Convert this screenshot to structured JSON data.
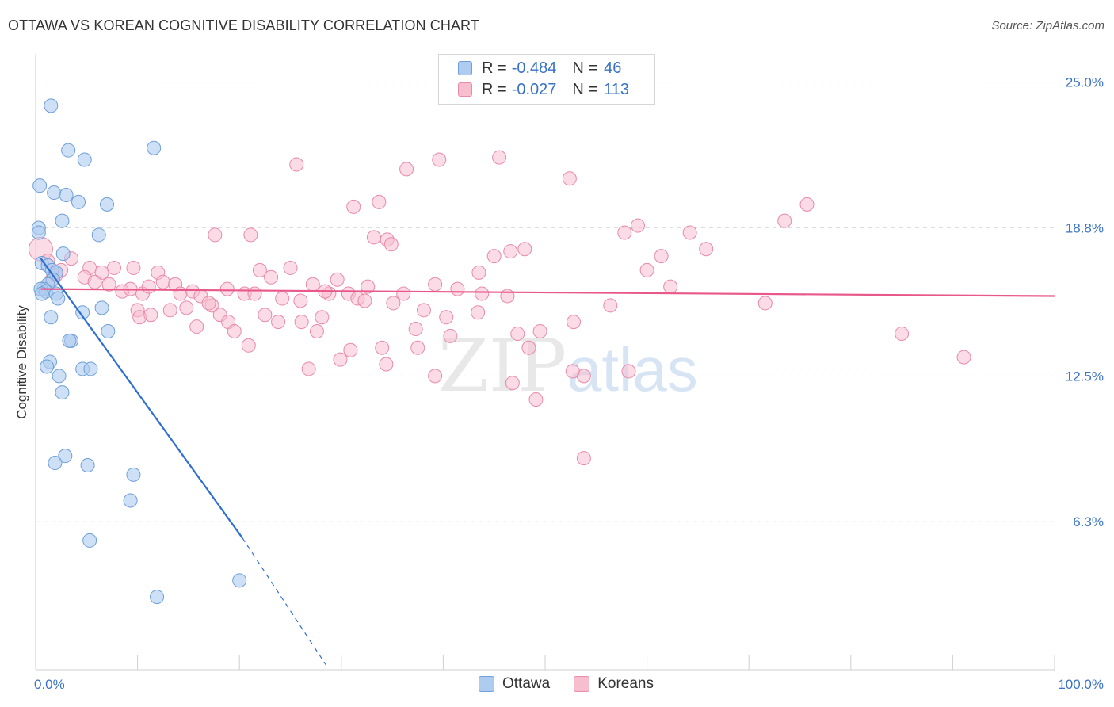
{
  "header": {
    "title": "OTTAWA VS KOREAN COGNITIVE DISABILITY CORRELATION CHART",
    "source": "Source: ZipAtlas.com"
  },
  "watermark": {
    "part1": "ZIP",
    "part2": "atlas"
  },
  "legend": {
    "rows": [
      {
        "r_label": "R =",
        "r_value": "-0.484",
        "n_label": "N =",
        "n_value": "46"
      },
      {
        "r_label": "R =",
        "r_value": "-0.027",
        "n_label": "N =",
        "n_value": "113"
      }
    ]
  },
  "bottom_legend": {
    "series1": "Ottawa",
    "series2": "Koreans"
  },
  "colors": {
    "ottawa_fill": "#aeccf0",
    "ottawa_stroke": "#6e9fd8",
    "ottawa_line": "#2f6fcf",
    "koreans_fill": "#f7bed0",
    "koreans_stroke": "#e88aa8",
    "koreans_line": "#e8588a",
    "axis_label": "#3a73c4",
    "grid": "#dddddd"
  },
  "chart_data": {
    "type": "scatter",
    "title": "OTTAWA VS KOREAN COGNITIVE DISABILITY CORRELATION CHART",
    "xlabel": "",
    "ylabel": "Cognitive Disability",
    "xlim": [
      0,
      100
    ],
    "ylim": [
      0,
      25.9
    ],
    "x_tick_labels": [
      "0.0%",
      "100.0%"
    ],
    "y_ticks": [
      6.3,
      12.5,
      18.8,
      25.0
    ],
    "y_tick_labels": [
      "6.3%",
      "12.5%",
      "18.8%",
      "25.0%"
    ],
    "grid": true,
    "legend_position": "top-center",
    "series": [
      {
        "name": "Ottawa",
        "r": -0.484,
        "n": 46,
        "trend": {
          "x": [
            0.5,
            20.3
          ],
          "y": [
            17.5,
            5.6
          ]
        },
        "trend_extension": {
          "x": [
            20.3,
            28.5
          ],
          "y": [
            5.6,
            0.2
          ]
        },
        "points": [
          [
            1.5,
            24.0
          ],
          [
            11.6,
            22.2
          ],
          [
            3.2,
            22.1
          ],
          [
            4.8,
            21.7
          ],
          [
            0.4,
            20.6
          ],
          [
            1.8,
            20.3
          ],
          [
            3.0,
            20.2
          ],
          [
            4.2,
            19.9
          ],
          [
            7.0,
            19.8
          ],
          [
            2.6,
            19.1
          ],
          [
            0.3,
            18.8
          ],
          [
            0.3,
            18.6
          ],
          [
            6.2,
            18.5
          ],
          [
            2.7,
            17.7
          ],
          [
            0.6,
            17.3
          ],
          [
            1.2,
            17.2
          ],
          [
            1.6,
            17.0
          ],
          [
            2.0,
            16.9
          ],
          [
            1.7,
            16.6
          ],
          [
            1.2,
            16.4
          ],
          [
            0.8,
            16.2
          ],
          [
            0.5,
            16.2
          ],
          [
            1.0,
            16.1
          ],
          [
            0.6,
            16.0
          ],
          [
            2.0,
            16.0
          ],
          [
            2.2,
            15.8
          ],
          [
            6.5,
            15.4
          ],
          [
            4.6,
            15.2
          ],
          [
            1.5,
            15.0
          ],
          [
            7.1,
            14.4
          ],
          [
            3.5,
            14.0
          ],
          [
            3.3,
            14.0
          ],
          [
            1.4,
            13.1
          ],
          [
            1.1,
            12.9
          ],
          [
            4.6,
            12.8
          ],
          [
            5.4,
            12.8
          ],
          [
            2.3,
            12.5
          ],
          [
            2.6,
            11.8
          ],
          [
            2.9,
            9.1
          ],
          [
            1.9,
            8.8
          ],
          [
            5.1,
            8.7
          ],
          [
            9.6,
            8.3
          ],
          [
            9.3,
            7.2
          ],
          [
            5.3,
            5.5
          ],
          [
            20.0,
            3.8
          ],
          [
            11.9,
            3.1
          ]
        ]
      },
      {
        "name": "Koreans",
        "r": -0.027,
        "n": 113,
        "trend": {
          "x": [
            0.5,
            100
          ],
          "y": [
            16.2,
            15.9
          ]
        },
        "points": [
          [
            0.5,
            17.9
          ],
          [
            1.2,
            17.4
          ],
          [
            2.0,
            16.8
          ],
          [
            2.5,
            17.0
          ],
          [
            1.6,
            16.6
          ],
          [
            3.5,
            17.5
          ],
          [
            5.3,
            17.1
          ],
          [
            6.5,
            16.9
          ],
          [
            7.7,
            17.1
          ],
          [
            9.6,
            17.1
          ],
          [
            12.0,
            16.9
          ],
          [
            4.8,
            16.7
          ],
          [
            5.8,
            16.5
          ],
          [
            7.2,
            16.4
          ],
          [
            8.5,
            16.1
          ],
          [
            9.3,
            16.2
          ],
          [
            10.5,
            16.0
          ],
          [
            11.1,
            16.3
          ],
          [
            12.5,
            16.5
          ],
          [
            13.7,
            16.4
          ],
          [
            14.2,
            16.0
          ],
          [
            15.4,
            16.1
          ],
          [
            16.2,
            15.9
          ],
          [
            17.3,
            15.5
          ],
          [
            18.8,
            16.2
          ],
          [
            10.0,
            15.3
          ],
          [
            10.2,
            15.0
          ],
          [
            11.3,
            15.1
          ],
          [
            13.2,
            15.3
          ],
          [
            14.8,
            15.4
          ],
          [
            17.0,
            15.6
          ],
          [
            18.1,
            15.1
          ],
          [
            18.9,
            14.8
          ],
          [
            19.5,
            14.4
          ],
          [
            15.8,
            14.6
          ],
          [
            20.5,
            16.0
          ],
          [
            21.5,
            16.0
          ],
          [
            22.5,
            15.1
          ],
          [
            23.1,
            16.7
          ],
          [
            24.2,
            15.8
          ],
          [
            23.8,
            14.8
          ],
          [
            25.0,
            17.1
          ],
          [
            26.0,
            15.7
          ],
          [
            26.1,
            14.8
          ],
          [
            27.2,
            16.4
          ],
          [
            28.1,
            15.0
          ],
          [
            28.8,
            16.0
          ],
          [
            27.6,
            14.4
          ],
          [
            20.9,
            13.8
          ],
          [
            26.8,
            12.8
          ],
          [
            28.4,
            16.1
          ],
          [
            29.6,
            16.6
          ],
          [
            30.7,
            16.0
          ],
          [
            31.6,
            15.8
          ],
          [
            32.3,
            15.7
          ],
          [
            32.6,
            16.3
          ],
          [
            29.9,
            13.2
          ],
          [
            30.9,
            13.6
          ],
          [
            34.0,
            13.7
          ],
          [
            35.1,
            15.6
          ],
          [
            36.1,
            16.0
          ],
          [
            37.3,
            14.5
          ],
          [
            37.5,
            13.7
          ],
          [
            38.1,
            15.3
          ],
          [
            39.2,
            16.4
          ],
          [
            40.3,
            15.0
          ],
          [
            40.7,
            14.2
          ],
          [
            39.2,
            12.5
          ],
          [
            34.4,
            13.0
          ],
          [
            33.2,
            18.4
          ],
          [
            34.5,
            18.3
          ],
          [
            34.9,
            18.1
          ],
          [
            33.7,
            19.9
          ],
          [
            31.2,
            19.7
          ],
          [
            36.4,
            21.3
          ],
          [
            25.6,
            21.5
          ],
          [
            39.6,
            21.7
          ],
          [
            21.1,
            18.5
          ],
          [
            45.5,
            21.8
          ],
          [
            45.0,
            17.6
          ],
          [
            46.3,
            15.9
          ],
          [
            46.6,
            17.8
          ],
          [
            47.3,
            14.3
          ],
          [
            48.0,
            17.9
          ],
          [
            52.4,
            20.9
          ],
          [
            53.8,
            12.5
          ],
          [
            56.4,
            15.5
          ],
          [
            58.2,
            12.7
          ],
          [
            57.8,
            18.6
          ],
          [
            59.1,
            18.9
          ],
          [
            60.0,
            17.0
          ],
          [
            61.4,
            17.6
          ],
          [
            62.3,
            16.3
          ],
          [
            64.2,
            18.6
          ],
          [
            46.8,
            12.2
          ],
          [
            48.4,
            13.7
          ],
          [
            49.5,
            14.4
          ],
          [
            49.1,
            11.5
          ],
          [
            52.7,
            12.7
          ],
          [
            53.8,
            9.0
          ],
          [
            52.8,
            14.8
          ],
          [
            43.4,
            15.2
          ],
          [
            43.8,
            16.0
          ],
          [
            65.8,
            17.9
          ],
          [
            71.6,
            15.6
          ],
          [
            73.5,
            19.1
          ],
          [
            75.7,
            19.8
          ],
          [
            85.0,
            14.3
          ],
          [
            91.1,
            13.3
          ],
          [
            17.6,
            18.5
          ],
          [
            22.0,
            17.0
          ],
          [
            43.5,
            16.9
          ],
          [
            41.4,
            16.2
          ]
        ]
      }
    ]
  }
}
